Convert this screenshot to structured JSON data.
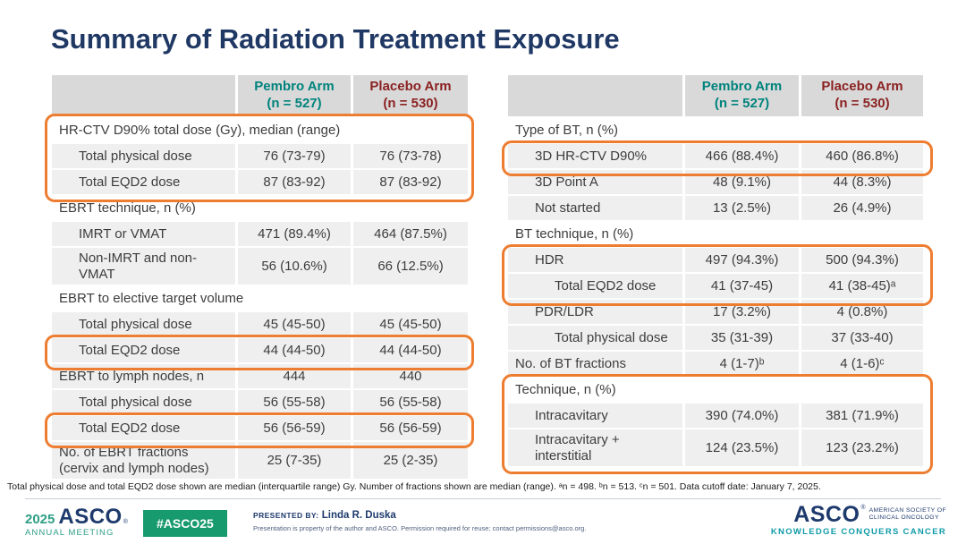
{
  "title": "Summary of Radiation Treatment Exposure",
  "columns": {
    "pembro": "Pembro Arm\n(n = 527)",
    "placebo": "Placebo Arm\n(n = 530)"
  },
  "colors": {
    "pembro_teal": "#00837C",
    "placebo_red": "#8B2222",
    "highlight_orange": "#ED7D31",
    "title_navy": "#1F3864",
    "footer_green": "#189A6F",
    "tagline_teal": "#0F9BA8"
  },
  "left": {
    "rows": [
      {
        "label": "HR-CTV D90% total dose (Gy), median (range)",
        "pembro": "",
        "placebo": ""
      },
      {
        "label": "Total physical dose",
        "pembro": "76 (73-79)",
        "placebo": "76 (73-78)"
      },
      {
        "label": "Total EQD2 dose",
        "pembro": "87 (83-92)",
        "placebo": "87 (83-92)"
      },
      {
        "label": "EBRT technique, n (%)",
        "pembro": "",
        "placebo": ""
      },
      {
        "label": "IMRT or VMAT",
        "pembro": "471 (89.4%)",
        "placebo": "464 (87.5%)"
      },
      {
        "label": "Non-IMRT and non-\nVMAT",
        "pembro": "56 (10.6%)",
        "placebo": "66 (12.5%)"
      },
      {
        "label": "EBRT to elective target volume",
        "pembro": "",
        "placebo": ""
      },
      {
        "label": "Total physical dose",
        "pembro": "45 (45-50)",
        "placebo": "45 (45-50)"
      },
      {
        "label": "Total EQD2 dose",
        "pembro": "44 (44-50)",
        "placebo": "44 (44-50)"
      },
      {
        "label": "EBRT to lymph nodes, n",
        "pembro": "444",
        "placebo": "440"
      },
      {
        "label": "Total physical dose",
        "pembro": "56 (55-58)",
        "placebo": "56 (55-58)"
      },
      {
        "label": "Total EQD2 dose",
        "pembro": "56 (56-59)",
        "placebo": "56 (56-59)"
      },
      {
        "label": "No. of EBRT fractions\n(cervix and lymph nodes)",
        "pembro": "25 (7-35)",
        "placebo": "25 (2-35)"
      }
    ]
  },
  "right": {
    "rows": [
      {
        "label": "Type of BT, n (%)",
        "pembro": "",
        "placebo": ""
      },
      {
        "label": "3D HR-CTV D90%",
        "pembro": "466 (88.4%)",
        "placebo": "460 (86.8%)"
      },
      {
        "label": "3D Point A",
        "pembro": "48 (9.1%)",
        "placebo": "44 (8.3%)"
      },
      {
        "label": "Not started",
        "pembro": "13 (2.5%)",
        "placebo": "26 (4.9%)"
      },
      {
        "label": "BT technique, n (%)",
        "pembro": "",
        "placebo": ""
      },
      {
        "label": "HDR",
        "pembro": "497 (94.3%)",
        "placebo": "500 (94.3%)"
      },
      {
        "label": "Total EQD2 dose",
        "pembro": "41 (37-45)",
        "placebo": "41 (38-45)ᵃ"
      },
      {
        "label": "PDR/LDR",
        "pembro": "17 (3.2%)",
        "placebo": "4 (0.8%)"
      },
      {
        "label": "Total physical dose",
        "pembro": "35 (31-39)",
        "placebo": "37 (33-40)"
      },
      {
        "label": "No. of BT fractions",
        "pembro": "4 (1-7)ᵇ",
        "placebo": "4 (1-6)ᶜ"
      },
      {
        "label": "Technique, n (%)",
        "pembro": "",
        "placebo": ""
      },
      {
        "label": "Intracavitary",
        "pembro": "390 (74.0%)",
        "placebo": "381 (71.9%)"
      },
      {
        "label": "Intracavitary +\ninterstitial",
        "pembro": "124 (23.5%)",
        "placebo": "123 (23.2%)"
      }
    ]
  },
  "footnote": "Total physical dose and total EQD2 dose shown are median (interquartile range) Gy. Number of fractions shown are median (range). ᵃn = 498. ᵇn = 513. ᶜn = 501. Data cutoff date: January 7, 2025.",
  "footer": {
    "year": "2025",
    "asco_wordmark": "ASCO",
    "reg_mark": "®",
    "annual_meeting": "ANNUAL MEETING",
    "hashtag": "#ASCO25",
    "presented_by_label": "PRESENTED BY:",
    "presenter": "Linda R. Duska",
    "disclaimer": "Presentation is property of the author and ASCO. Permission required for reuse; contact permissions@asco.org.",
    "society": "AMERICAN SOCIETY OF\nCLINICAL ONCOLOGY",
    "tagline": "KNOWLEDGE CONQUERS CANCER"
  }
}
